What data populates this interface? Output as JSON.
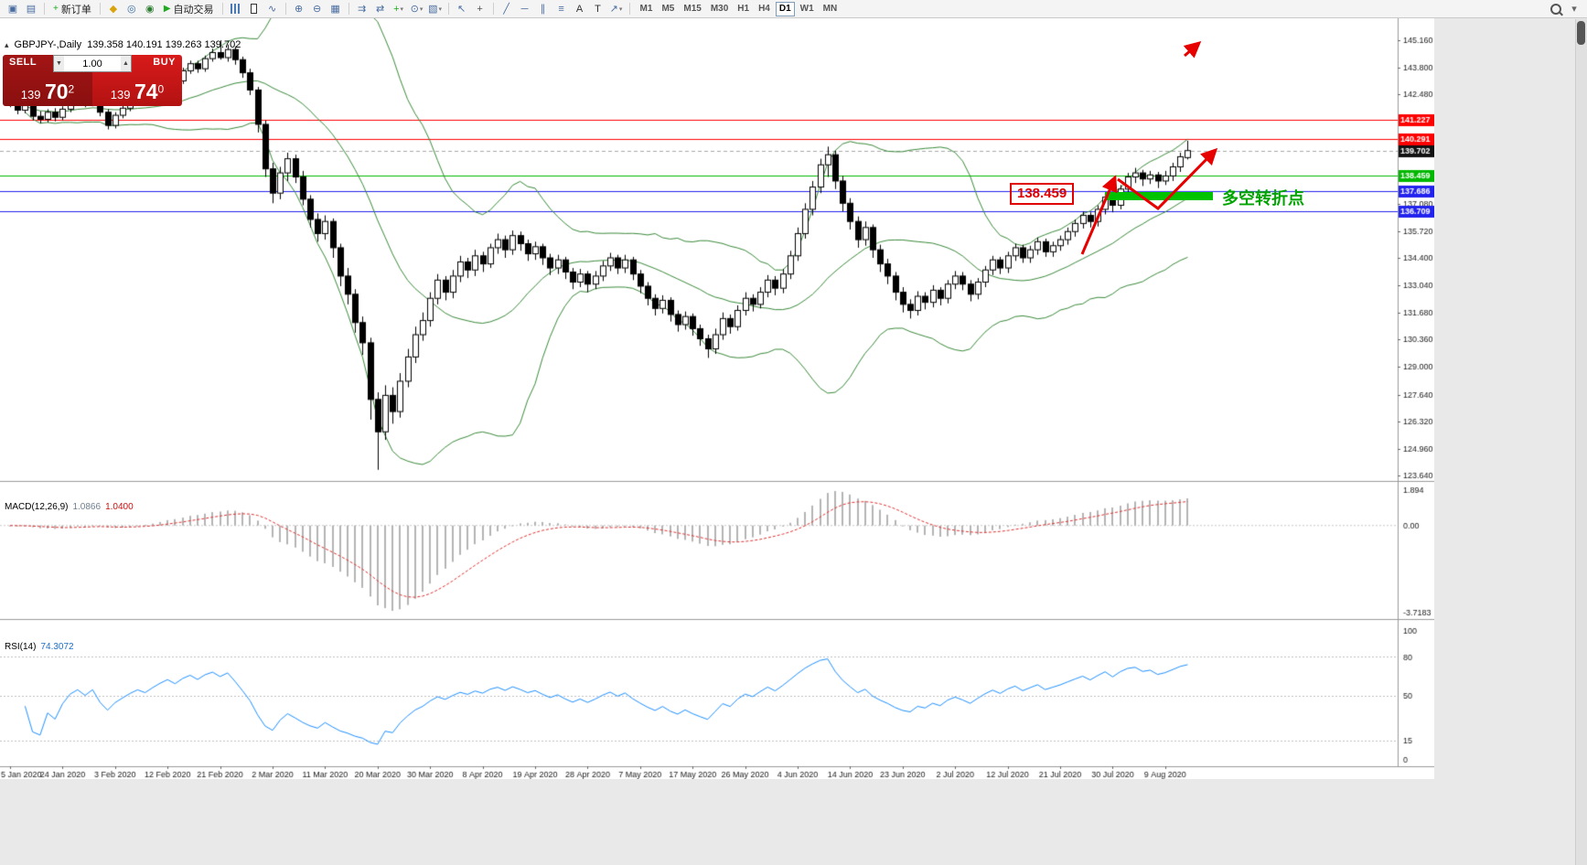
{
  "toolbar": {
    "new_order_label": "新订单",
    "autotrading_label": "自动交易",
    "timeframes": [
      "M1",
      "M5",
      "M15",
      "M30",
      "H1",
      "H4",
      "D1",
      "W1",
      "MN"
    ],
    "active_timeframe": "D1",
    "items": [
      {
        "type": "icon",
        "name": "new-chart-icon",
        "glyph": "▣"
      },
      {
        "type": "icon",
        "name": "profiles-icon",
        "glyph": "▤"
      },
      {
        "type": "sep"
      },
      {
        "type": "labeled-button",
        "name": "new-order-button",
        "icon_glyph": "+",
        "icon_color": "#1faa1f",
        "label": "新订单"
      },
      {
        "type": "sep"
      },
      {
        "type": "icon",
        "name": "metaeditor-icon",
        "glyph": "◆",
        "color": "#d9a40b"
      },
      {
        "type": "icon",
        "name": "market-watch-icon",
        "glyph": "◎",
        "color": "#3a6ea5"
      },
      {
        "type": "icon",
        "name": "news-icon",
        "glyph": "◉",
        "color": "#2f7d32"
      },
      {
        "type": "labeled-button",
        "name": "autotrading-button",
        "icon_glyph": "▶",
        "icon_color": "#1faa1f",
        "label": "自动交易"
      },
      {
        "type": "sep"
      },
      {
        "type": "cssicon",
        "name": "bar-chart-icon",
        "cls": "ic-bars"
      },
      {
        "type": "cssicon",
        "name": "candlestick-icon",
        "cls": "ic-candle"
      },
      {
        "type": "icon",
        "name": "line-chart-icon",
        "glyph": "∿"
      },
      {
        "type": "sep"
      },
      {
        "type": "icon",
        "name": "zoom-in-icon",
        "glyph": "⊕"
      },
      {
        "type": "icon",
        "name": "zoom-out-icon",
        "glyph": "⊖"
      },
      {
        "type": "icon",
        "name": "tile-windows-icon",
        "glyph": "▦"
      },
      {
        "type": "sep"
      },
      {
        "type": "icon",
        "name": "auto-scroll-icon",
        "glyph": "⇉"
      },
      {
        "type": "icon",
        "name": "chart-shift-icon",
        "glyph": "⇄"
      },
      {
        "type": "icon",
        "name": "indicators-icon",
        "glyph": "+",
        "color": "#1faa1f",
        "dd": true
      },
      {
        "type": "icon",
        "name": "periods-icon",
        "glyph": "⊙",
        "dd": true
      },
      {
        "type": "icon",
        "name": "templates-icon",
        "glyph": "▧",
        "dd": true
      },
      {
        "type": "sep"
      },
      {
        "type": "icon",
        "name": "cursor-icon",
        "glyph": "↖"
      },
      {
        "type": "icon",
        "name": "crosshair-icon",
        "glyph": "+",
        "color": "#555555"
      },
      {
        "type": "sep"
      },
      {
        "type": "icon",
        "name": "trendline-icon",
        "glyph": "╱"
      },
      {
        "type": "icon",
        "name": "horizontal-line-icon",
        "glyph": "─"
      },
      {
        "type": "icon",
        "name": "channel-icon",
        "glyph": "∥"
      },
      {
        "type": "icon",
        "name": "fibonacci-icon",
        "glyph": "≡"
      },
      {
        "type": "icon",
        "name": "text-icon",
        "glyph": "A",
        "color": "#333333"
      },
      {
        "type": "icon",
        "name": "label-icon",
        "glyph": "T",
        "color": "#333333"
      },
      {
        "type": "icon",
        "name": "arrows-icon",
        "glyph": "↗",
        "dd": true
      },
      {
        "type": "sep"
      },
      {
        "type": "timeframes"
      },
      {
        "type": "gap"
      },
      {
        "type": "cssicon",
        "name": "search-icon",
        "cls": "ic-mag"
      },
      {
        "type": "icon",
        "name": "panel-toggle-icon",
        "glyph": "▾",
        "color": "#666666"
      }
    ]
  },
  "chart": {
    "title": "GBPJPY-,Daily",
    "ohlc": "139.358 140.191 139.263 139.702",
    "one_click": {
      "sell_label": "SELL",
      "buy_label": "BUY",
      "volume": "1.00",
      "sell_price_small": "139",
      "sell_price_big": "70",
      "sell_price_sup": "2",
      "buy_price_small": "139",
      "buy_price_big": "74",
      "buy_price_sup": "0"
    }
  },
  "indicator_headers": {
    "macd_label": "MACD(12,26,9)",
    "macd_value_main": "1.0866",
    "macd_value_signal": "1.0400",
    "rsi_label": "RSI(14)",
    "rsi_value": "74.3072"
  },
  "annotations": {
    "price_label": "138.459",
    "turning_point_text": "多空转折点",
    "green_zone_color": "#00c300",
    "arrow_color": "#e60000"
  },
  "chart_data": {
    "type": "candlestick",
    "symbol": "GBPJPY-",
    "timeframe": "Daily",
    "colors": {
      "bull": "#ffffff",
      "bear": "#000000",
      "outline": "#000000",
      "bollinger": "#3a8a3a",
      "macd_hist": "#b4b4b4",
      "macd_signal": "#e03030",
      "rsi": "#1e90ff"
    },
    "price_axis_ticks": [
      "145.160",
      "143.800",
      "142.480",
      "137.080",
      "135.720",
      "134.400",
      "133.040",
      "131.680",
      "130.360",
      "129.000",
      "127.640",
      "126.320",
      "124.960",
      "123.640"
    ],
    "hlines": [
      {
        "price": 141.227,
        "label": "141.227",
        "color": "#ff0000"
      },
      {
        "price": 140.291,
        "label": "140.291",
        "color": "#ff0000"
      },
      {
        "price": 139.702,
        "label": "139.702",
        "color": "#111111",
        "style": "bid"
      },
      {
        "price": 138.459,
        "label": "138.459",
        "color": "#00b800"
      },
      {
        "price": 137.686,
        "label": "137.686",
        "color": "#2222ee"
      },
      {
        "price": 136.709,
        "label": "136.709",
        "color": "#2222ee"
      }
    ],
    "bollinger": {
      "period": 20,
      "deviation": 2
    },
    "macd": {
      "params": "12,26,9",
      "axis": [
        "1.894",
        "0.00",
        "-3.7183"
      ]
    },
    "rsi": {
      "period": 14,
      "axis": [
        "100",
        "80",
        "50",
        "15",
        "0"
      ],
      "levels": [
        80,
        50,
        15
      ]
    },
    "dates": [
      "5 Jan 2020",
      "24 Jan 2020",
      "3 Feb 2020",
      "12 Feb 2020",
      "21 Feb 2020",
      "2 Mar 2020",
      "11 Mar 2020",
      "20 Mar 2020",
      "30 Mar 2020",
      "8 Apr 2020",
      "19 Apr 2020",
      "28 Apr 2020",
      "7 May 2020",
      "17 May 2020",
      "26 May 2020",
      "4 Jun 2020",
      "14 Jun 2020",
      "23 Jun 2020",
      "2 Jul 2020",
      "12 Jul 2020",
      "21 Jul 2020",
      "30 Jul 2020",
      "9 Aug 2020"
    ],
    "candles": [
      [
        142.3,
        142.55,
        141.85,
        142.05
      ],
      [
        142.05,
        142.2,
        141.5,
        141.7
      ],
      [
        141.7,
        142.15,
        141.55,
        141.95
      ],
      [
        141.95,
        142.05,
        141.2,
        141.4
      ],
      [
        141.4,
        141.65,
        141.05,
        141.25
      ],
      [
        141.25,
        141.75,
        141.1,
        141.6
      ],
      [
        141.6,
        141.8,
        141.15,
        141.35
      ],
      [
        141.35,
        141.9,
        141.2,
        141.75
      ],
      [
        141.75,
        142.25,
        141.6,
        142.1
      ],
      [
        142.1,
        142.5,
        141.95,
        142.3
      ],
      [
        142.3,
        142.45,
        141.85,
        142.05
      ],
      [
        142.05,
        142.5,
        141.9,
        142.35
      ],
      [
        142.35,
        142.45,
        141.4,
        141.6
      ],
      [
        141.6,
        141.75,
        140.75,
        140.95
      ],
      [
        140.95,
        141.6,
        140.8,
        141.45
      ],
      [
        141.45,
        141.95,
        141.3,
        141.8
      ],
      [
        141.8,
        142.3,
        141.65,
        142.15
      ],
      [
        142.15,
        142.6,
        142.0,
        142.45
      ],
      [
        142.45,
        142.6,
        142.05,
        142.25
      ],
      [
        142.25,
        142.8,
        142.1,
        142.65
      ],
      [
        142.65,
        143.2,
        142.5,
        143.05
      ],
      [
        143.05,
        143.55,
        142.9,
        143.4
      ],
      [
        143.4,
        143.55,
        142.95,
        143.15
      ],
      [
        143.15,
        143.8,
        143.0,
        143.65
      ],
      [
        143.65,
        144.15,
        143.5,
        144.0
      ],
      [
        144.0,
        144.15,
        143.55,
        143.75
      ],
      [
        143.75,
        144.4,
        143.6,
        144.25
      ],
      [
        144.25,
        144.75,
        144.1,
        144.55
      ],
      [
        144.55,
        145.16,
        144.2,
        144.3
      ],
      [
        144.3,
        144.95,
        144.1,
        144.7
      ],
      [
        144.7,
        144.85,
        143.95,
        144.2
      ],
      [
        144.2,
        144.35,
        143.3,
        143.55
      ],
      [
        143.55,
        143.75,
        142.45,
        142.7
      ],
      [
        142.7,
        142.85,
        140.6,
        141.0
      ],
      [
        141.0,
        141.2,
        138.4,
        138.8
      ],
      [
        138.8,
        139.1,
        137.1,
        137.6
      ],
      [
        137.6,
        138.9,
        137.3,
        138.6
      ],
      [
        138.6,
        139.6,
        138.2,
        139.3
      ],
      [
        139.3,
        139.5,
        138.1,
        138.4
      ],
      [
        138.4,
        138.7,
        137.0,
        137.3
      ],
      [
        137.3,
        137.5,
        135.9,
        136.3
      ],
      [
        136.3,
        136.6,
        135.2,
        135.6
      ],
      [
        135.6,
        136.5,
        135.3,
        136.2
      ],
      [
        136.2,
        136.35,
        134.4,
        134.9
      ],
      [
        134.9,
        135.1,
        133.0,
        133.5
      ],
      [
        133.5,
        133.9,
        132.1,
        132.6
      ],
      [
        132.6,
        132.85,
        130.7,
        131.2
      ],
      [
        131.2,
        131.5,
        129.6,
        130.2
      ],
      [
        130.2,
        130.45,
        126.4,
        127.4
      ],
      [
        127.4,
        127.75,
        123.92,
        125.8
      ],
      [
        125.8,
        128.1,
        125.4,
        127.6
      ],
      [
        127.6,
        128.0,
        126.2,
        126.8
      ],
      [
        126.8,
        128.7,
        126.5,
        128.3
      ],
      [
        128.3,
        129.9,
        128.0,
        129.5
      ],
      [
        129.5,
        131.0,
        129.2,
        130.6
      ],
      [
        130.6,
        131.7,
        130.3,
        131.3
      ],
      [
        131.3,
        132.7,
        131.0,
        132.4
      ],
      [
        132.4,
        133.6,
        132.1,
        133.3
      ],
      [
        133.3,
        133.5,
        132.3,
        132.7
      ],
      [
        132.7,
        133.8,
        132.4,
        133.5
      ],
      [
        133.5,
        134.5,
        133.2,
        134.2
      ],
      [
        134.2,
        134.4,
        133.4,
        133.8
      ],
      [
        133.8,
        134.8,
        133.5,
        134.5
      ],
      [
        134.5,
        134.7,
        133.7,
        134.1
      ],
      [
        134.1,
        135.1,
        133.9,
        134.9
      ],
      [
        134.9,
        135.6,
        134.6,
        135.3
      ],
      [
        135.3,
        135.5,
        134.4,
        134.8
      ],
      [
        134.8,
        135.75,
        134.55,
        135.5
      ],
      [
        135.5,
        135.7,
        134.75,
        135.1
      ],
      [
        135.1,
        135.3,
        134.25,
        134.6
      ],
      [
        134.6,
        135.2,
        134.3,
        134.95
      ],
      [
        134.95,
        135.1,
        134.05,
        134.4
      ],
      [
        134.4,
        134.6,
        133.55,
        133.9
      ],
      [
        133.9,
        134.55,
        133.6,
        134.3
      ],
      [
        134.3,
        134.45,
        133.35,
        133.7
      ],
      [
        133.7,
        133.9,
        132.85,
        133.2
      ],
      [
        133.2,
        133.85,
        132.95,
        133.6
      ],
      [
        133.6,
        133.75,
        132.7,
        133.1
      ],
      [
        133.1,
        133.75,
        132.85,
        133.5
      ],
      [
        133.5,
        134.25,
        133.25,
        134.0
      ],
      [
        134.0,
        134.65,
        133.75,
        134.4
      ],
      [
        134.4,
        134.55,
        133.6,
        133.9
      ],
      [
        133.9,
        134.55,
        133.65,
        134.3
      ],
      [
        134.3,
        134.45,
        133.3,
        133.6
      ],
      [
        133.6,
        133.8,
        132.65,
        133.0
      ],
      [
        133.0,
        133.2,
        132.05,
        132.4
      ],
      [
        132.4,
        132.6,
        131.55,
        131.9
      ],
      [
        131.9,
        132.55,
        131.65,
        132.3
      ],
      [
        132.3,
        132.45,
        131.25,
        131.6
      ],
      [
        131.6,
        131.8,
        130.75,
        131.1
      ],
      [
        131.1,
        131.75,
        130.85,
        131.5
      ],
      [
        131.5,
        131.65,
        130.55,
        130.9
      ],
      [
        130.9,
        131.1,
        130.05,
        130.4
      ],
      [
        130.4,
        130.6,
        129.45,
        129.9
      ],
      [
        129.9,
        130.9,
        129.65,
        130.6
      ],
      [
        130.6,
        131.7,
        130.35,
        131.4
      ],
      [
        131.4,
        131.6,
        130.65,
        131.0
      ],
      [
        131.0,
        132.05,
        130.8,
        131.8
      ],
      [
        131.8,
        132.7,
        131.55,
        132.4
      ],
      [
        132.4,
        132.6,
        131.75,
        132.1
      ],
      [
        132.1,
        132.95,
        131.9,
        132.7
      ],
      [
        132.7,
        133.55,
        132.45,
        133.3
      ],
      [
        133.3,
        133.5,
        132.55,
        132.9
      ],
      [
        132.9,
        133.85,
        132.65,
        133.6
      ],
      [
        133.6,
        134.75,
        133.35,
        134.5
      ],
      [
        134.5,
        135.9,
        134.25,
        135.6
      ],
      [
        135.6,
        137.1,
        135.35,
        136.8
      ],
      [
        136.8,
        138.2,
        136.5,
        137.9
      ],
      [
        137.9,
        139.3,
        137.6,
        139.0
      ],
      [
        139.0,
        139.9,
        138.4,
        139.5
      ],
      [
        139.5,
        139.7,
        137.8,
        138.2
      ],
      [
        138.2,
        138.45,
        136.7,
        137.1
      ],
      [
        137.1,
        137.35,
        135.8,
        136.2
      ],
      [
        136.2,
        136.45,
        134.9,
        135.3
      ],
      [
        135.3,
        136.2,
        135.0,
        135.9
      ],
      [
        135.9,
        136.05,
        134.4,
        134.8
      ],
      [
        134.8,
        135.05,
        133.7,
        134.1
      ],
      [
        134.1,
        134.35,
        133.1,
        133.5
      ],
      [
        133.5,
        133.7,
        132.3,
        132.7
      ],
      [
        132.7,
        132.95,
        131.7,
        132.1
      ],
      [
        132.1,
        132.35,
        131.4,
        131.8
      ],
      [
        131.8,
        132.75,
        131.55,
        132.5
      ],
      [
        132.5,
        132.7,
        131.85,
        132.2
      ],
      [
        132.2,
        133.05,
        131.95,
        132.8
      ],
      [
        132.8,
        132.95,
        132.05,
        132.4
      ],
      [
        132.4,
        133.3,
        132.15,
        133.1
      ],
      [
        133.1,
        133.75,
        132.85,
        133.5
      ],
      [
        133.5,
        133.7,
        132.8,
        133.1
      ],
      [
        133.1,
        133.3,
        132.25,
        132.6
      ],
      [
        132.6,
        133.4,
        132.35,
        133.2
      ],
      [
        133.2,
        134.0,
        132.95,
        133.8
      ],
      [
        133.8,
        134.5,
        133.55,
        134.3
      ],
      [
        134.3,
        134.45,
        133.6,
        133.9
      ],
      [
        133.9,
        134.7,
        133.65,
        134.5
      ],
      [
        134.5,
        135.1,
        134.25,
        134.9
      ],
      [
        134.9,
        135.05,
        134.15,
        134.4
      ],
      [
        134.4,
        135.0,
        134.15,
        134.8
      ],
      [
        134.8,
        135.4,
        134.55,
        135.2
      ],
      [
        135.2,
        135.35,
        134.45,
        134.7
      ],
      [
        134.7,
        135.2,
        134.45,
        135.0
      ],
      [
        135.0,
        135.5,
        134.75,
        135.3
      ],
      [
        135.3,
        135.9,
        135.05,
        135.7
      ],
      [
        135.7,
        136.3,
        135.45,
        136.1
      ],
      [
        136.1,
        136.7,
        135.85,
        136.5
      ],
      [
        136.5,
        136.65,
        135.9,
        136.2
      ],
      [
        136.2,
        137.0,
        135.95,
        136.8
      ],
      [
        136.8,
        137.6,
        136.55,
        137.4
      ],
      [
        137.4,
        137.55,
        136.65,
        137.0
      ],
      [
        137.0,
        138.0,
        136.8,
        137.8
      ],
      [
        137.8,
        138.6,
        137.55,
        138.4
      ],
      [
        138.4,
        138.85,
        138.1,
        138.6
      ],
      [
        138.6,
        138.75,
        137.95,
        138.3
      ],
      [
        138.3,
        138.7,
        138.05,
        138.5
      ],
      [
        138.5,
        138.65,
        137.85,
        138.2
      ],
      [
        138.2,
        138.7,
        138.0,
        138.45
      ],
      [
        138.45,
        139.1,
        138.2,
        138.9
      ],
      [
        138.9,
        139.6,
        138.65,
        139.4
      ],
      [
        139.358,
        140.191,
        139.263,
        139.702
      ]
    ]
  }
}
